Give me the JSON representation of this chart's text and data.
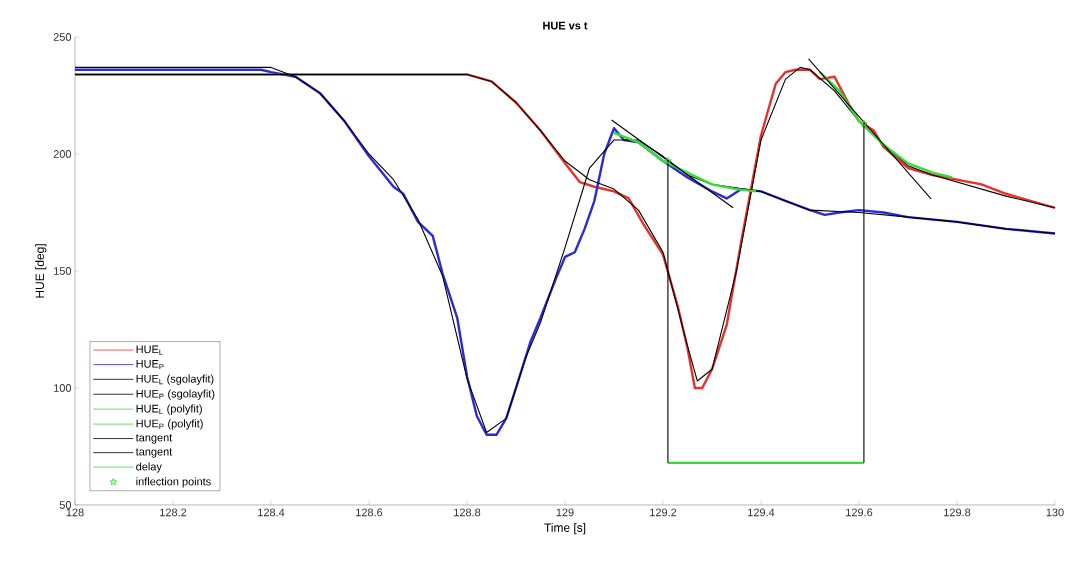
{
  "chart_data": {
    "type": "line",
    "title": "HUE vs t",
    "xlabel": "Time [s]",
    "ylabel": "HUE [deg]",
    "xlim": [
      128,
      130
    ],
    "ylim": [
      50,
      250
    ],
    "xticks": [
      128,
      128.2,
      128.4,
      128.6,
      128.8,
      129,
      129.2,
      129.4,
      129.6,
      129.8,
      130
    ],
    "yticks": [
      50,
      100,
      150,
      200,
      250
    ],
    "legend": "bottom left",
    "series": [
      {
        "name": "HUE$_{L}$",
        "color": "#e8302c",
        "x": [
          128,
          128.8,
          128.85,
          128.9,
          128.95,
          129.0,
          129.03,
          129.06,
          129.1,
          129.13,
          129.16,
          129.2,
          129.23,
          129.25,
          129.265,
          129.28,
          129.3,
          129.33,
          129.36,
          129.4,
          129.43,
          129.45,
          129.47,
          129.5,
          129.52,
          129.55,
          129.58,
          129.6,
          129.63,
          129.65,
          129.7,
          129.75,
          129.8,
          129.85,
          129.9,
          129.95,
          130
        ],
        "values": [
          234,
          234,
          231,
          222,
          210,
          196,
          188,
          186,
          184,
          181,
          170,
          157,
          135,
          117,
          100,
          100,
          108,
          127,
          163,
          208,
          230,
          235,
          236,
          236,
          232,
          233,
          221,
          214,
          210,
          203,
          194,
          191,
          189,
          187,
          183,
          180,
          177
        ]
      },
      {
        "name": "HUE$_{P}$",
        "color": "#2a2ad8",
        "x": [
          128,
          128.38,
          128.4,
          128.45,
          128.5,
          128.55,
          128.6,
          128.65,
          128.67,
          128.7,
          128.73,
          128.75,
          128.78,
          128.8,
          128.82,
          128.84,
          128.86,
          128.88,
          128.9,
          128.93,
          128.95,
          128.98,
          129.0,
          129.02,
          129.04,
          129.06,
          129.08,
          129.1,
          129.12,
          129.15,
          129.2,
          129.25,
          129.3,
          129.33,
          129.36,
          129.4,
          129.45,
          129.5,
          129.53,
          129.56,
          129.6,
          129.65,
          129.7,
          129.8,
          129.9,
          130
        ],
        "values": [
          236,
          236,
          235,
          233,
          226,
          214,
          199,
          186,
          183,
          171,
          165,
          149,
          130,
          105,
          88,
          80,
          80,
          87,
          100,
          120,
          130,
          146,
          156,
          158,
          168,
          180,
          200,
          211,
          206,
          205,
          197,
          190,
          184,
          181,
          185,
          184,
          180,
          176,
          174,
          175,
          176,
          175,
          173,
          171,
          168,
          166
        ]
      },
      {
        "name": "HUE$_{L}$ (sgolayfit)",
        "color": "#000000",
        "x": [
          128,
          128.8,
          128.85,
          128.9,
          128.95,
          129.0,
          129.05,
          129.1,
          129.15,
          129.2,
          129.25,
          129.27,
          129.3,
          129.35,
          129.4,
          129.45,
          129.48,
          129.5,
          129.55,
          129.6,
          129.65,
          129.7,
          129.75,
          129.8,
          129.9,
          130
        ],
        "values": [
          234,
          234,
          231,
          222,
          210,
          197,
          189,
          185,
          176,
          158,
          118,
          103,
          108,
          150,
          206,
          232,
          237,
          236,
          227,
          214,
          204,
          195,
          191,
          188,
          182,
          177
        ]
      },
      {
        "name": "HUE$_{P}$ (sgolayfit)",
        "color": "#000000",
        "x": [
          128,
          128.4,
          128.45,
          128.5,
          128.55,
          128.6,
          128.65,
          128.7,
          128.75,
          128.8,
          128.84,
          128.88,
          128.92,
          128.95,
          129.0,
          129.05,
          129.1,
          129.15,
          129.2,
          129.25,
          129.3,
          129.4,
          129.5,
          129.6,
          129.7,
          129.8,
          129.9,
          130
        ],
        "values": [
          237,
          237,
          233,
          226,
          214,
          200,
          189,
          172,
          148,
          104,
          81,
          87,
          113,
          128,
          160,
          194,
          206,
          206,
          199,
          191,
          187,
          184,
          176,
          175,
          173,
          171,
          168,
          166
        ]
      },
      {
        "name": "HUE$_{L}$ (polyfit)",
        "color": "#33dd33",
        "x": [
          129.52,
          129.56,
          129.6,
          129.65,
          129.7,
          129.75,
          129.79
        ],
        "values": [
          235,
          227,
          214,
          204,
          196,
          192,
          190
        ]
      },
      {
        "name": "HUE$_{P}$ (polyfit)",
        "color": "#33dd33",
        "x": [
          129.1,
          129.15,
          129.2,
          129.25,
          129.3,
          129.35,
          129.39
        ],
        "values": [
          209,
          205,
          197,
          192,
          187,
          185,
          184
        ]
      },
      {
        "name": "tangent",
        "color": "#000000",
        "x": [
          129.095,
          129.343
        ],
        "values": [
          214.5,
          177
        ]
      },
      {
        "name": "tangent",
        "color": "#000000",
        "x": [
          129.497,
          129.747
        ],
        "values": [
          240.6,
          180.8
        ]
      },
      {
        "name": "delay",
        "color": "#33dd33",
        "x": [
          129.21,
          129.61
        ],
        "values": [
          68,
          68
        ]
      },
      {
        "name": "inflection points",
        "type": "scatter",
        "marker": "star",
        "color": "#33dd33",
        "x": [
          129.21,
          129.61
        ],
        "values": [
          197,
          213
        ]
      },
      {
        "color": "#000000",
        "x": [
          129.21,
          129.21
        ],
        "values": [
          68,
          197
        ]
      },
      {
        "color": "#000000",
        "x": [
          129.61,
          129.61
        ],
        "values": [
          68,
          213
        ]
      }
    ]
  }
}
